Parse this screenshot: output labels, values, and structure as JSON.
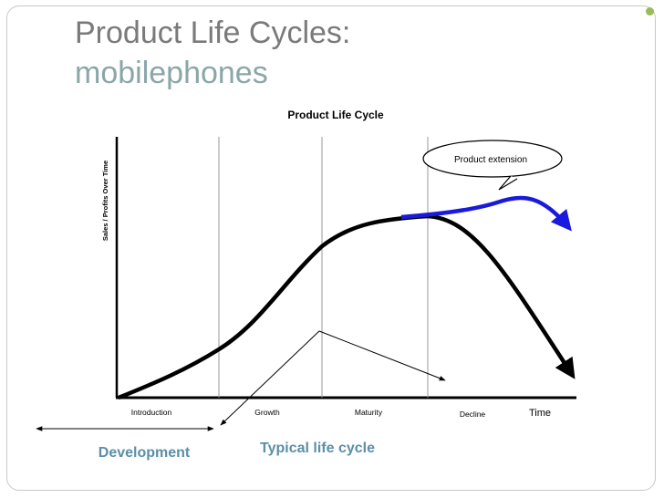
{
  "slide": {
    "title": "Product Life Cycles:",
    "subtitle": "mobilephones",
    "accent_color": "#9bbb59",
    "subtitle_color": "#8aa7a8"
  },
  "diagram": {
    "title": "Product Life Cycle",
    "ylabel": "Sales / Profits Over Time",
    "xlabel": "Time",
    "stages": [
      "Introduction",
      "Growth",
      "Maturity",
      "Decline"
    ],
    "callout": "Product extension",
    "bottom_labels": {
      "development": "Development",
      "typical": "Typical life cycle"
    },
    "colors": {
      "curve": "#000000",
      "extension": "#1a1adc",
      "bottom_label": "#5b8fa8"
    }
  }
}
